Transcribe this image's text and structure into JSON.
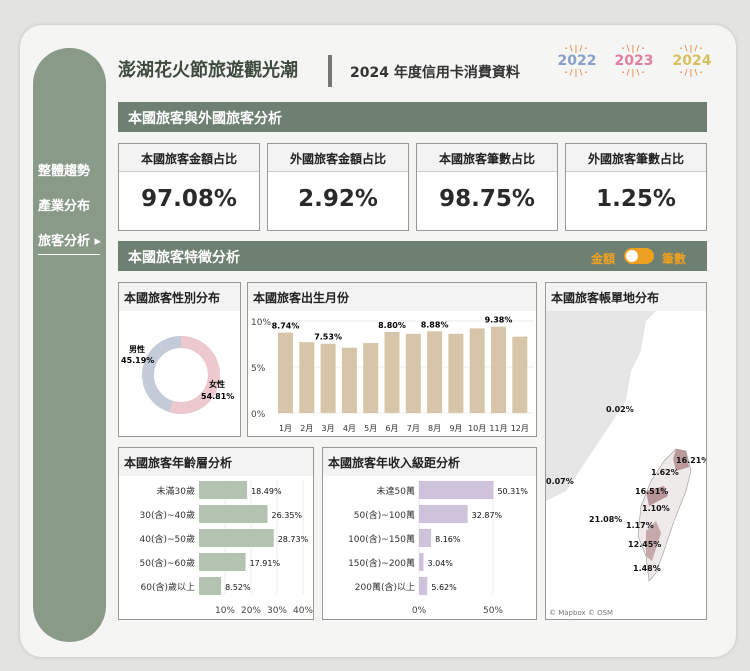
{
  "header": {
    "title": "澎湖花火節旅遊觀光潮",
    "subtitle": "2024 年度信用卡消費資料",
    "years": [
      {
        "label": "2022",
        "color": "#8aa0cc"
      },
      {
        "label": "2023",
        "color": "#e07fa0"
      },
      {
        "label": "2024",
        "color": "#d8c060"
      }
    ]
  },
  "sidebar": {
    "items": [
      {
        "label": "整體趨勢"
      },
      {
        "label": "產業分布"
      },
      {
        "label": "旅客分析 ▸"
      }
    ]
  },
  "section1": {
    "title": "本國旅客與外國旅客分析",
    "kpis": [
      {
        "label": "本國旅客金額占比",
        "value": "97.08%"
      },
      {
        "label": "外國旅客金額占比",
        "value": "2.92%"
      },
      {
        "label": "本國旅客筆數占比",
        "value": "98.75%"
      },
      {
        "label": "外國旅客筆數占比",
        "value": "1.25%"
      }
    ]
  },
  "section2": {
    "title": "本國旅客特徵分析",
    "toggle_left": "金額",
    "toggle_right": "筆數"
  },
  "gender": {
    "title": "本國旅客性別分布",
    "male_label": "男性",
    "male_value": "45.19%",
    "female_label": "女性",
    "female_value": "54.81%"
  },
  "chart_data": [
    {
      "type": "bar",
      "title": "本國旅客出生月份",
      "categories": [
        "1月",
        "2月",
        "3月",
        "4月",
        "5月",
        "6月",
        "7月",
        "8月",
        "9月",
        "10月",
        "11月",
        "12月"
      ],
      "values": [
        8.74,
        7.7,
        7.53,
        7.1,
        7.6,
        8.8,
        8.6,
        8.88,
        8.6,
        9.2,
        9.38,
        8.3
      ],
      "labels": [
        "8.74%",
        "",
        "7.53%",
        "",
        "",
        "8.80%",
        "",
        "8.88%",
        "",
        "",
        "9.38%",
        ""
      ],
      "yticks": [
        "0%",
        "5%",
        "10%"
      ],
      "ylim": [
        0,
        10
      ]
    },
    {
      "type": "bar",
      "orientation": "horizontal",
      "title": "本國旅客年齡層分析",
      "categories": [
        "未滿30歲",
        "30(含)~40歲",
        "40(含)~50歲",
        "50(含)~60歲",
        "60(含)歲以上"
      ],
      "values": [
        18.49,
        26.35,
        28.73,
        17.91,
        8.52
      ],
      "labels": [
        "18.49%",
        "26.35%",
        "28.73%",
        "17.91%",
        "8.52%"
      ],
      "xticks": [
        "10%",
        "20%",
        "30%",
        "40%"
      ]
    },
    {
      "type": "bar",
      "orientation": "horizontal",
      "title": "本國旅客年收入級距分析",
      "categories": [
        "未達50萬",
        "50(含)~100萬",
        "100(含)~150萬",
        "150(含)~200萬",
        "200萬(含)以上"
      ],
      "values": [
        50.31,
        32.87,
        8.16,
        3.04,
        5.62
      ],
      "labels": [
        "50.31%",
        "32.87%",
        "8.16%",
        "3.04%",
        "5.62%"
      ],
      "xticks": [
        "0%",
        "50%"
      ]
    }
  ],
  "map": {
    "title": "本國旅客帳單地分布",
    "labels": [
      "0.02%",
      "0.07%",
      "16.21%",
      "1.62%",
      "16.51%",
      "1.10%",
      "21.08%",
      "1.17%",
      "12.45%",
      "1.48%"
    ],
    "attribution": "© Mapbox  © OSM"
  }
}
